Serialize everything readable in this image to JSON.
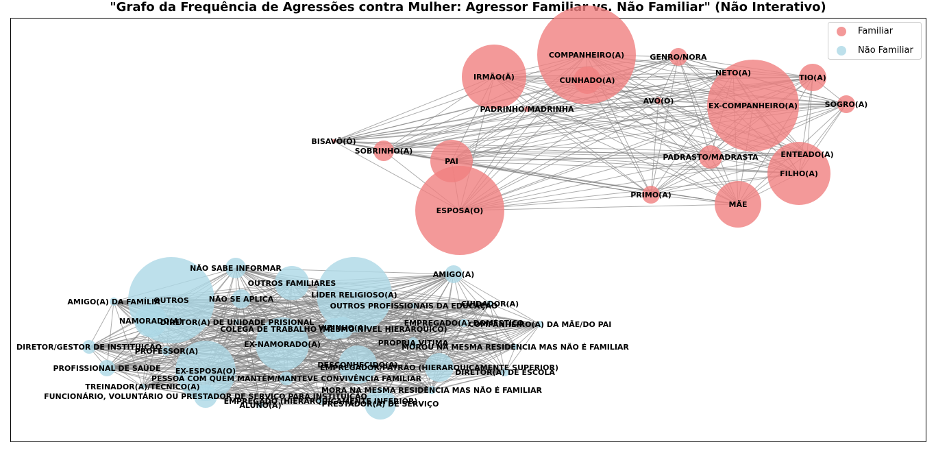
{
  "title": "\"Grafo da Frequência de Agressões contra Mulher: Agressor Familiar vs. Não Familiar\" (Não Interativo)",
  "legend": {
    "familiar": "Familiar",
    "nao_familiar": "Não Familiar"
  },
  "colors": {
    "familiar": "#f08080",
    "nao_familiar": "#add8e6",
    "edge": "#808080"
  },
  "groups": {
    "familiar": {
      "nodes": [
        {
          "label": "COMPANHEIRO(A)"
        },
        {
          "label": "GENRO/NORA"
        },
        {
          "label": "IRMÃO(Ã)"
        },
        {
          "label": "CUNHADO(A)"
        },
        {
          "label": "NETO(A)"
        },
        {
          "label": "TIO(A)"
        },
        {
          "label": "AVÔ(Ó)"
        },
        {
          "label": "EX-COMPANHEIRO(A)"
        },
        {
          "label": "SOGRO(A)"
        },
        {
          "label": "PADRINHO/MADRINHA"
        },
        {
          "label": "BISAVÔ(Ó)"
        },
        {
          "label": "SOBRINHO(A)"
        },
        {
          "label": "ENTEADO(A)"
        },
        {
          "label": "PAI"
        },
        {
          "label": "PADRASTO/MADRASTA"
        },
        {
          "label": "FILHO(A)"
        },
        {
          "label": "PRIMO(A)"
        },
        {
          "label": "MÃE"
        },
        {
          "label": "ESPOSA(O)"
        }
      ]
    },
    "nao_familiar": {
      "nodes": [
        {
          "label": "LÍDER RELIGIOSO(A)"
        },
        {
          "label": "NÃO SABE INFORMAR"
        },
        {
          "label": "AMIGO(A)"
        },
        {
          "label": "OUTROS FAMILIARES"
        },
        {
          "label": "VIZINHO(A)"
        },
        {
          "label": "NÃO SE APLICA"
        },
        {
          "label": "AMIGO(A) DA FAMÍLIA"
        },
        {
          "label": "OUTROS"
        },
        {
          "label": "OUTROS PROFISSIONAIS DA EDUCAÇÃO"
        },
        {
          "label": "CUIDADOR(A)"
        },
        {
          "label": "NAMORADO(A)"
        },
        {
          "label": "DIRETOR(A) DE UNIDADE PRISIONAL"
        },
        {
          "label": "EMPREGADO(A) DOMÉSTICO"
        },
        {
          "label": "COMPANHEIRO(A) DA MÃE/DO PAI"
        },
        {
          "label": "COLEGA DE TRABALHO (MESMO NÍVEL HIERÁRQUICO)"
        },
        {
          "label": "EX-NAMORADO(A)"
        },
        {
          "label": "PRÓPRIA VÍTIMA"
        },
        {
          "label": "DIRETOR/GESTOR DE INSTITUIÇÃO"
        },
        {
          "label": "MOROU NA MESMA RESIDÊNCIA MAS NÃO É FAMILIAR"
        },
        {
          "label": "PROFESSOR(A)"
        },
        {
          "label": "DESCONHECIDO(A)"
        },
        {
          "label": "EMPREGADOR/PATRÃO (HIERARQUICAMENTE SUPERIOR)"
        },
        {
          "label": "PROFISSIONAL DE SAÚDE"
        },
        {
          "label": "EX-ESPOSA(O)"
        },
        {
          "label": "DIRETOR(A) DE ESCOLA"
        },
        {
          "label": "PESSOA COM QUEM MANTÉM/MANTEVE CONVIVÊNCIA FAMILIAR"
        },
        {
          "label": "TREINADOR(A)/TÉCNICO(A)"
        },
        {
          "label": "MORA NA MESMA RESIDÊNCIA MAS NÃO É FAMILIAR"
        },
        {
          "label": "FUNCIONÁRIO, VOLUNTÁRIO OU PRESTADOR DE SERVIÇO PARA INSTITUIÇÃO"
        },
        {
          "label": "EMPREGADO (HIERARQUICAMENTE INFERIOR)"
        },
        {
          "label": "PRESTADOR(A) DE SERVIÇO"
        },
        {
          "label": "ALUNO(A)"
        }
      ]
    }
  }
}
